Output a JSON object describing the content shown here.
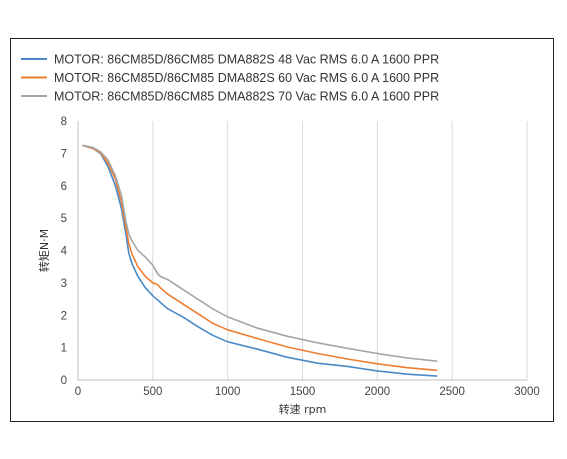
{
  "chart_data": {
    "type": "line",
    "title": "",
    "xlabel": "转速 rpm",
    "ylabel": "转矩N·M",
    "xlim": [
      0,
      3000
    ],
    "ylim": [
      0,
      8
    ],
    "xticks": [
      "0",
      "500",
      "1000",
      "1500",
      "2000",
      "2500",
      "3000"
    ],
    "yticks": [
      "0",
      "1",
      "2",
      "3",
      "4",
      "5",
      "6",
      "7",
      "8"
    ],
    "grid": "vertical",
    "legend": "top",
    "series": [
      {
        "name": "MOTOR: 86CM85D/86CM85 DMA882S 48 Vac  RMS  6.0 A  1600 PPR",
        "color": "#4a8ac6",
        "x": [
          30,
          100,
          150,
          200,
          250,
          290,
          320,
          340,
          360,
          400,
          450,
          500,
          550,
          600,
          700,
          800,
          900,
          1000,
          1200,
          1400,
          1600,
          1800,
          2000,
          2200,
          2400
        ],
        "y": [
          7.25,
          7.15,
          7.0,
          6.6,
          6.0,
          5.3,
          4.5,
          3.9,
          3.6,
          3.2,
          2.85,
          2.6,
          2.4,
          2.2,
          1.95,
          1.65,
          1.38,
          1.18,
          0.95,
          0.7,
          0.52,
          0.42,
          0.28,
          0.18,
          0.12
        ]
      },
      {
        "name": "MOTOR: 86CM85D/86CM85 DMA882S 60 Vac  RMS  6.0 A  1600 PPR",
        "color": "#ed7d31",
        "x": [
          30,
          100,
          150,
          200,
          250,
          290,
          320,
          340,
          360,
          400,
          450,
          500,
          530,
          550,
          600,
          700,
          800,
          900,
          1000,
          1200,
          1400,
          1600,
          1800,
          2000,
          2200,
          2400
        ],
        "y": [
          7.25,
          7.15,
          7.02,
          6.7,
          6.2,
          5.5,
          4.7,
          4.2,
          3.9,
          3.5,
          3.2,
          3.0,
          2.95,
          2.85,
          2.65,
          2.35,
          2.05,
          1.75,
          1.55,
          1.28,
          1.02,
          0.82,
          0.65,
          0.5,
          0.38,
          0.3
        ]
      },
      {
        "name": "MOTOR: 86CM85D/86CM85 DMA882S 70 Vac  RMS  6.0 A  1600 PPR",
        "color": "#a5a5a5",
        "x": [
          30,
          100,
          150,
          200,
          250,
          290,
          320,
          340,
          360,
          400,
          450,
          500,
          530,
          550,
          600,
          700,
          800,
          900,
          1000,
          1200,
          1400,
          1600,
          1800,
          2000,
          2200,
          2400
        ],
        "y": [
          7.25,
          7.18,
          7.05,
          6.8,
          6.3,
          5.7,
          4.9,
          4.5,
          4.3,
          4.0,
          3.8,
          3.55,
          3.3,
          3.2,
          3.1,
          2.8,
          2.5,
          2.2,
          1.95,
          1.6,
          1.35,
          1.15,
          0.98,
          0.82,
          0.68,
          0.58
        ]
      }
    ]
  }
}
